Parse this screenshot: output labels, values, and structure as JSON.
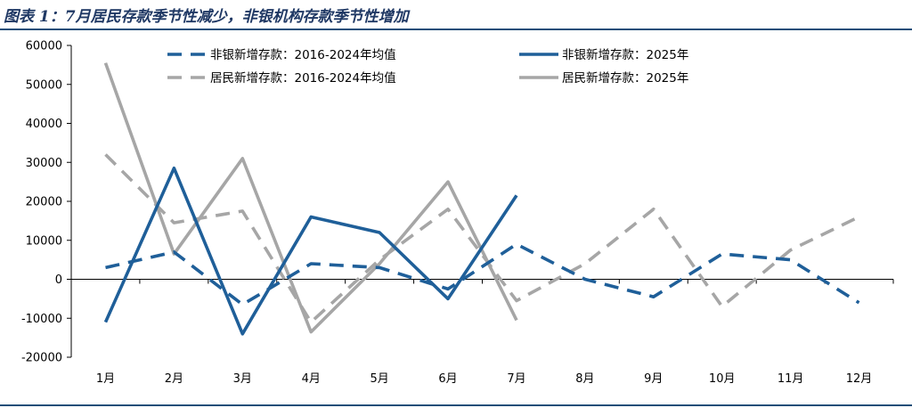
{
  "title": "图表 1：7月居民存款季节性减少，非银机构存款季节性增加",
  "chart_data": {
    "type": "line",
    "title": "",
    "xlabel": "",
    "ylabel": "",
    "categories": [
      "1月",
      "2月",
      "3月",
      "4月",
      "5月",
      "6月",
      "7月",
      "8月",
      "9月",
      "10月",
      "11月",
      "12月"
    ],
    "ylim": [
      -20000,
      60000
    ],
    "yticks": [
      -20000,
      -10000,
      0,
      10000,
      20000,
      30000,
      40000,
      50000,
      60000
    ],
    "grid": false,
    "legend_position": "top",
    "series": [
      {
        "name": "非银新增存款：2016-2024年均值",
        "color": "#1f5f99",
        "dash": true,
        "values": [
          3000,
          7000,
          -6500,
          4000,
          3000,
          -2500,
          9000,
          0,
          -4500,
          6500,
          5000,
          -6000
        ]
      },
      {
        "name": "非银新增存款：2025年",
        "color": "#1f5f99",
        "dash": false,
        "values": [
          -11000,
          28500,
          -14000,
          16000,
          12000,
          -5000,
          21500,
          null,
          null,
          null,
          null,
          null
        ]
      },
      {
        "name": "居民新增存款：2016-2024年均值",
        "color": "#a6a6a6",
        "dash": true,
        "values": [
          32000,
          14500,
          17500,
          -11000,
          5000,
          18000,
          -5500,
          4000,
          18000,
          -7000,
          7500,
          16000
        ]
      },
      {
        "name": "居民新增存款：2025年",
        "color": "#a6a6a6",
        "dash": false,
        "values": [
          55500,
          6500,
          31000,
          -13500,
          4000,
          25000,
          -10500,
          null,
          null,
          null,
          null,
          null
        ]
      }
    ]
  }
}
